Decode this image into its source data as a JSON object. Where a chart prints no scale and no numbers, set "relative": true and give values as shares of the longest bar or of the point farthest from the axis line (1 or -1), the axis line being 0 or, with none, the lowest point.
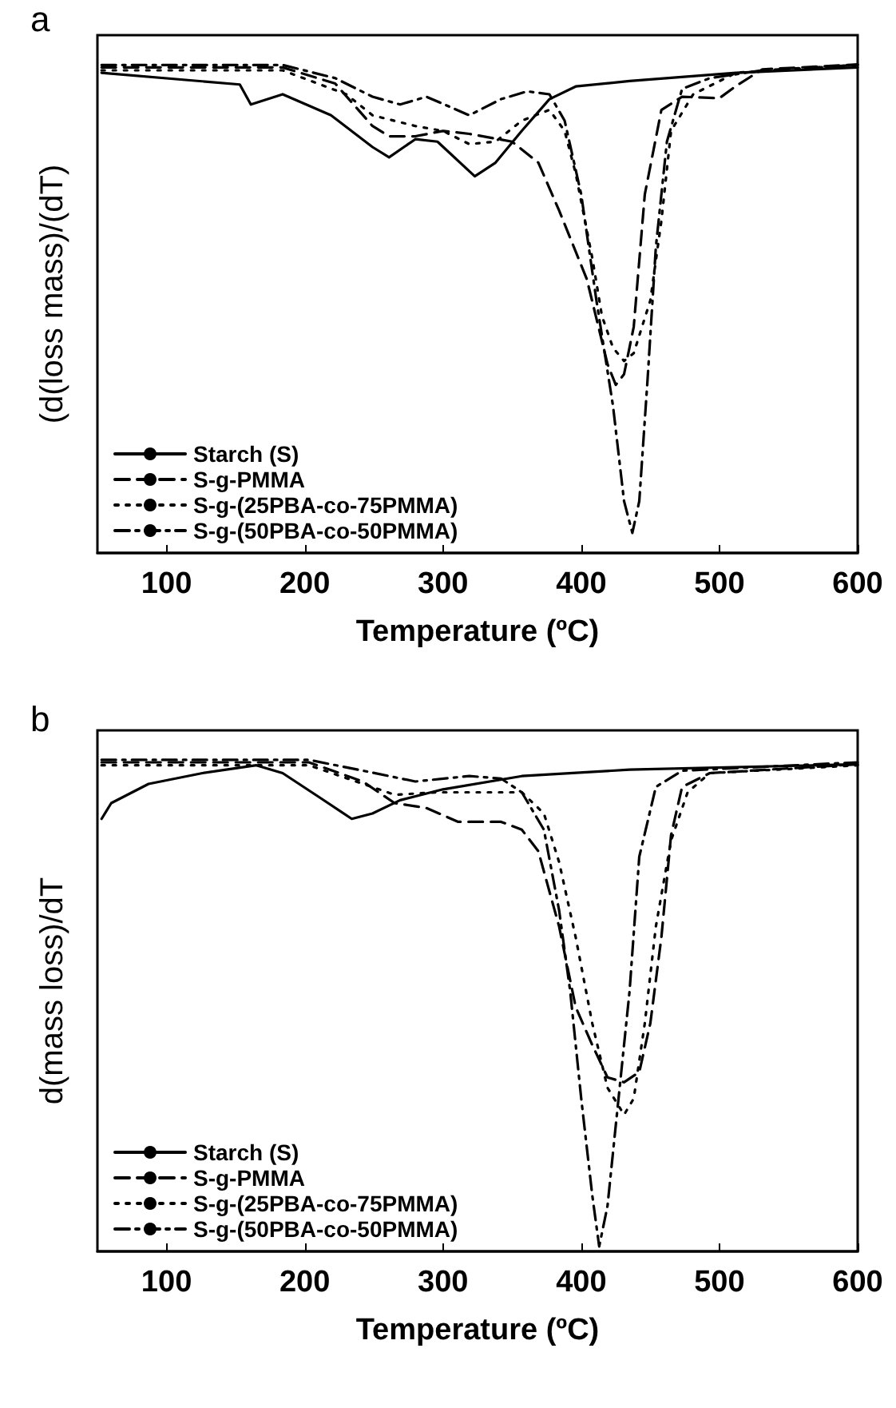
{
  "chart_data": [
    {
      "type": "line",
      "title": "a",
      "xlabel": "Temperature (ºC)",
      "ylabel": "(d(loss mass)/(dT)",
      "relative": true,
      "xlim": [
        50,
        600
      ],
      "xticks": [
        100,
        200,
        300,
        400,
        500,
        600
      ],
      "legend": "bottom left",
      "grid": false,
      "marker": "none",
      "series": [
        {
          "name": "Starch (S)",
          "color": "#000000",
          "line_style": "solid",
          "x": [
            53,
            153,
            161,
            184,
            219,
            249,
            261,
            280,
            296,
            323,
            338,
            357,
            377,
            396,
            435,
            512,
            600
          ],
          "values": [
            0.983,
            0.959,
            0.918,
            0.939,
            0.896,
            0.831,
            0.81,
            0.847,
            0.842,
            0.771,
            0.799,
            0.864,
            0.929,
            0.955,
            0.966,
            0.983,
            0.994
          ]
        },
        {
          "name": "S-g-PMMA",
          "color": "#000000",
          "line_style": "dashed",
          "x": [
            53,
            184,
            222,
            249,
            261,
            280,
            300,
            319,
            350,
            369,
            384,
            404,
            419,
            425,
            431,
            438,
            446,
            458,
            473,
            500,
            512,
            531,
            600
          ],
          "values": [
            0.994,
            0.994,
            0.961,
            0.874,
            0.853,
            0.853,
            0.864,
            0.858,
            0.842,
            0.799,
            0.701,
            0.561,
            0.387,
            0.344,
            0.366,
            0.463,
            0.734,
            0.907,
            0.934,
            0.931,
            0.956,
            0.99,
            1
          ]
        },
        {
          "name": "S-g-(25PBA-co-75PMMA)",
          "color": "#000000",
          "line_style": "dotted",
          "x": [
            53,
            184,
            230,
            249,
            280,
            300,
            319,
            338,
            357,
            377,
            388,
            396,
            408,
            415,
            423,
            431,
            438,
            450,
            458,
            465,
            481,
            512,
            600
          ],
          "values": [
            0.988,
            0.988,
            0.939,
            0.896,
            0.874,
            0.864,
            0.837,
            0.842,
            0.885,
            0.907,
            0.864,
            0.777,
            0.604,
            0.485,
            0.42,
            0.393,
            0.409,
            0.517,
            0.68,
            0.864,
            0.939,
            0.983,
            0.999
          ]
        },
        {
          "name": "S-g-(50PBA-co-50PMMA)",
          "color": "#000000",
          "line_style": "dashdot",
          "x": [
            53,
            184,
            222,
            249,
            269,
            288,
            319,
            342,
            361,
            377,
            388,
            400,
            411,
            423,
            431,
            437,
            442,
            448,
            454,
            462,
            473,
            493,
            531,
            600
          ],
          "values": [
            0.999,
            0.999,
            0.972,
            0.934,
            0.918,
            0.934,
            0.896,
            0.929,
            0.945,
            0.939,
            0.885,
            0.734,
            0.517,
            0.301,
            0.106,
            0.041,
            0.106,
            0.355,
            0.626,
            0.842,
            0.95,
            0.972,
            0.988,
            0.999
          ]
        }
      ]
    },
    {
      "type": "line",
      "title": "b",
      "xlabel": "Temperature (ºC)",
      "ylabel": "d(mass loss)/dT",
      "relative": true,
      "xlim": [
        50,
        600
      ],
      "xticks": [
        100,
        200,
        300,
        400,
        500,
        600
      ],
      "legend": "bottom left",
      "grid": false,
      "marker": "none",
      "series": [
        {
          "name": "Starch (S)",
          "color": "#000000",
          "line_style": "solid",
          "x": [
            53,
            60,
            87,
            126,
            165,
            184,
            211,
            234,
            249,
            269,
            300,
            357,
            435,
            600
          ],
          "values": [
            0.88,
            0.912,
            0.951,
            0.973,
            0.989,
            0.973,
            0.923,
            0.88,
            0.891,
            0.918,
            0.94,
            0.967,
            0.98,
            0.991
          ]
        },
        {
          "name": "S-g-PMMA",
          "color": "#000000",
          "line_style": "dashed",
          "x": [
            53,
            203,
            242,
            265,
            288,
            311,
            342,
            357,
            369,
            384,
            396,
            408,
            419,
            431,
            442,
            450,
            458,
            465,
            473,
            493,
            600
          ],
          "values": [
            0.995,
            0.995,
            0.956,
            0.912,
            0.902,
            0.874,
            0.874,
            0.858,
            0.814,
            0.661,
            0.497,
            0.42,
            0.354,
            0.344,
            0.365,
            0.464,
            0.639,
            0.847,
            0.945,
            0.973,
            0.991
          ]
        },
        {
          "name": "S-g-(25PBA-co-75PMMA)",
          "color": "#000000",
          "line_style": "dotted",
          "x": [
            53,
            203,
            265,
            296,
            357,
            373,
            384,
            396,
            408,
            419,
            431,
            438,
            446,
            454,
            465,
            477,
            493,
            600
          ],
          "values": [
            0.989,
            0.989,
            0.929,
            0.934,
            0.934,
            0.891,
            0.792,
            0.639,
            0.464,
            0.333,
            0.278,
            0.311,
            0.464,
            0.661,
            0.836,
            0.934,
            0.973,
            0.989
          ]
        },
        {
          "name": "S-g-(50PBA-co-50PMMA)",
          "color": "#000000",
          "line_style": "dashdot",
          "x": [
            53,
            203,
            242,
            280,
            319,
            342,
            357,
            373,
            384,
            392,
            400,
            408,
            413,
            419,
            427,
            435,
            442,
            454,
            473,
            600
          ],
          "values": [
            1,
            1,
            0.978,
            0.956,
            0.967,
            0.962,
            0.934,
            0.858,
            0.694,
            0.53,
            0.311,
            0.114,
            0.01,
            0.092,
            0.311,
            0.53,
            0.803,
            0.945,
            0.978,
            0.995
          ]
        }
      ]
    }
  ]
}
